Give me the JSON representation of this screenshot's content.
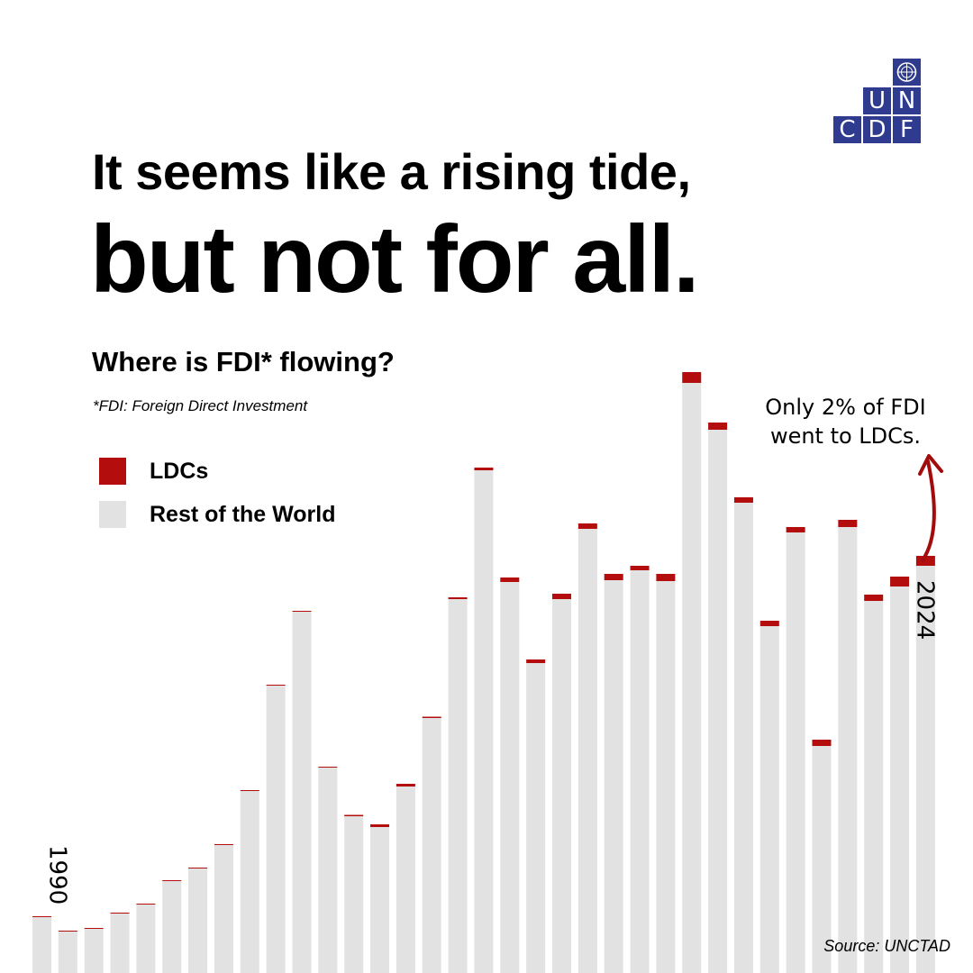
{
  "logo": {
    "letters": [
      "U",
      "N",
      "C",
      "D",
      "F"
    ]
  },
  "headline": {
    "line1": "It seems like a rising tide,",
    "line2": "but not for all."
  },
  "subtitle": "Where is FDI* flowing?",
  "footnote": "*FDI: Foreign Direct Investment",
  "legend": [
    {
      "label": "LDCs",
      "color": "#b30d0d"
    },
    {
      "label": "Rest of the World",
      "color": "#e2e2e2"
    }
  ],
  "annotation": {
    "line1": "Only 2% of FDI",
    "line2": "went to LDCs."
  },
  "source": "Source: UNCTAD",
  "colors": {
    "ldc": "#b30d0d",
    "rest": "#e2e2e2",
    "arrow": "#a30c0c",
    "logo": "#2e3b8f"
  },
  "chart_data": {
    "type": "bar",
    "stacked": true,
    "orientation": "vertical",
    "x": [
      1990,
      1991,
      1992,
      1993,
      1994,
      1995,
      1996,
      1997,
      1998,
      1999,
      2000,
      2001,
      2002,
      2003,
      2004,
      2005,
      2006,
      2007,
      2008,
      2009,
      2010,
      2011,
      2012,
      2013,
      2014,
      2015,
      2016,
      2017,
      2018,
      2019,
      2020,
      2021,
      2022,
      2023,
      2024
    ],
    "x_tick_labels": [
      "1990",
      "2024"
    ],
    "series": [
      {
        "name": "Rest of the World",
        "color": "#e2e2e2",
        "values": [
          62,
          46,
          49,
          66,
          76,
          102,
          116,
          142,
          202,
          319,
          401,
          228,
          174,
          162,
          207,
          283,
          415,
          558,
          434,
          344,
          415,
          493,
          436,
          447,
          435,
          655,
          603,
          522,
          385,
          489,
          252,
          495,
          413,
          429,
          452
        ]
      },
      {
        "name": "LDCs",
        "color": "#b30d0d",
        "values": [
          0.3,
          0.3,
          0.3,
          0.4,
          0.4,
          0.5,
          0.6,
          0.8,
          0.9,
          1.0,
          1.0,
          1.0,
          1.5,
          3,
          3,
          1.5,
          2,
          3,
          5,
          4,
          6,
          6,
          7,
          5,
          8,
          12,
          8,
          6,
          6,
          6,
          7,
          8,
          7,
          11,
          11
        ]
      }
    ],
    "annotation": "Only 2% of FDI went to LDCs."
  }
}
